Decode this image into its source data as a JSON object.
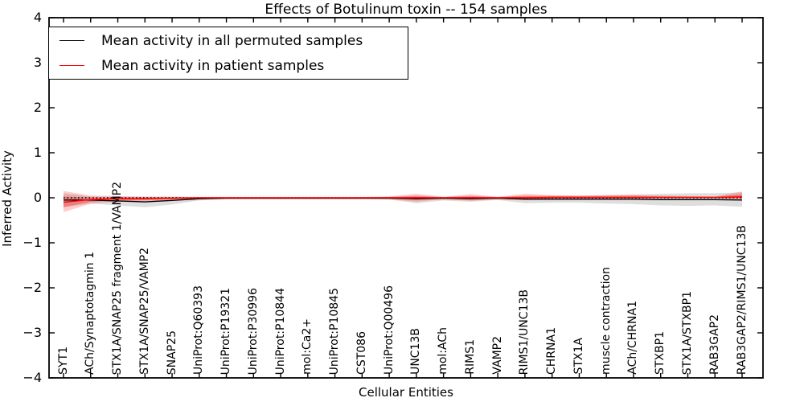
{
  "chart_data": {
    "type": "line",
    "title": "Effects of Botulinum toxin -- 154 samples",
    "xlabel": "Cellular Entities",
    "ylabel": "Inferred Activity",
    "ylim": [
      -4,
      4
    ],
    "grid": false,
    "legend_position": "upper left",
    "colors": {
      "permuted": "#000000",
      "patient": "#ff0000",
      "zero_line": "#000000"
    },
    "yticks": [
      {
        "label": "4",
        "value": 4
      },
      {
        "label": "3",
        "value": 3
      },
      {
        "label": "2",
        "value": 2
      },
      {
        "label": "1",
        "value": 1
      },
      {
        "label": "0",
        "value": 0
      },
      {
        "label": "−1",
        "value": -1
      },
      {
        "label": "−2",
        "value": -2
      },
      {
        "label": "−3",
        "value": -3
      },
      {
        "label": "−4",
        "value": -4
      }
    ],
    "categories": [
      "SYT1",
      "ACh/Synaptotagmin 1",
      "STX1A/SNAP25 fragment 1/VAMP2",
      "STX1A/SNAP25/VAMP2",
      "SNAP25",
      "UniProt:Q60393",
      "UniProt:P19321",
      "UniProt:P30996",
      "UniProt:P10844",
      "mol:Ca2+",
      "UniProt:P10845",
      "CST086",
      "UniProt:Q00496",
      "UNC13B",
      "mol:ACh",
      "RIMS1",
      "VAMP2",
      "RIMS1/UNC13B",
      "CHRNA1",
      "STX1A",
      "muscle contraction",
      "ACh/CHRNA1",
      "STXBP1",
      "STX1A/STXBP1",
      "RAB3GAP2",
      "RAB3GAP2/RIMS1/UNC13B"
    ],
    "series": [
      {
        "name": "Mean activity in all permuted samples",
        "color": "#000000",
        "style": "solid",
        "values": [
          -0.05,
          -0.05,
          -0.07,
          -0.09,
          -0.06,
          -0.02,
          -0.01,
          -0.01,
          -0.01,
          -0.01,
          -0.01,
          -0.01,
          -0.01,
          -0.02,
          -0.01,
          -0.02,
          -0.01,
          -0.03,
          -0.03,
          -0.03,
          -0.03,
          -0.03,
          -0.04,
          -0.04,
          -0.04,
          -0.05
        ]
      },
      {
        "name": "Mean activity in patient samples",
        "color": "#ff0000",
        "style": "solid",
        "values": [
          -0.1,
          -0.04,
          -0.02,
          -0.02,
          -0.01,
          0,
          0,
          0,
          0,
          0,
          0,
          0,
          0,
          0,
          0,
          0,
          0,
          0,
          0.01,
          0.01,
          0.01,
          0.01,
          0.01,
          0.01,
          0.01,
          0.02
        ]
      }
    ],
    "bands": [
      {
        "name": "permuted-samples-spread",
        "color": "#000000",
        "opacity": 0.13,
        "upper": [
          0.1,
          0.03,
          0.02,
          0.02,
          0.02,
          0.01,
          0.01,
          0.01,
          0.01,
          0.01,
          0.01,
          0.01,
          0.02,
          0.03,
          0.02,
          0.03,
          0.02,
          0.04,
          0.05,
          0.05,
          0.06,
          0.07,
          0.09,
          0.1,
          0.1,
          0.12
        ],
        "lower": [
          -0.2,
          -0.13,
          -0.17,
          -0.21,
          -0.15,
          -0.06,
          -0.03,
          -0.03,
          -0.03,
          -0.03,
          -0.03,
          -0.03,
          -0.04,
          -0.12,
          -0.06,
          -0.09,
          -0.05,
          -0.12,
          -0.11,
          -0.11,
          -0.13,
          -0.14,
          -0.17,
          -0.18,
          -0.17,
          -0.2
        ]
      },
      {
        "name": "patient-samples-spread",
        "color": "#ff0000",
        "opacity": 0.2,
        "upper": [
          0.15,
          0.05,
          0.04,
          0.03,
          0.03,
          0.02,
          0.02,
          0.02,
          0.02,
          0.02,
          0.02,
          0.02,
          0.03,
          0.09,
          0.02,
          0.08,
          0.02,
          0.09,
          0.06,
          0.05,
          0.06,
          0.07,
          0.05,
          0.04,
          0.03,
          0.14
        ],
        "lower": [
          -0.32,
          -0.13,
          -0.08,
          -0.07,
          -0.05,
          -0.03,
          -0.02,
          -0.02,
          -0.02,
          -0.02,
          -0.02,
          -0.02,
          -0.03,
          -0.09,
          -0.03,
          -0.07,
          -0.03,
          -0.05,
          -0.03,
          -0.02,
          -0.02,
          -0.02,
          -0.01,
          -0.01,
          -0.01,
          -0.04
        ]
      }
    ],
    "reference_line": {
      "value": 0,
      "style": "dotted",
      "color": "#000000"
    }
  }
}
